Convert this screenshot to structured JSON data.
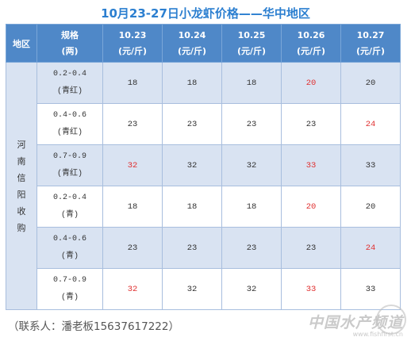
{
  "title": "10月23-27日小龙虾价格——华中地区",
  "header": {
    "region": "地区",
    "spec_top": "规格",
    "spec_bottom": "(两)",
    "dates": [
      {
        "date": "10.23",
        "unit": "(元/斤)"
      },
      {
        "date": "10.24",
        "unit": "(元/斤)"
      },
      {
        "date": "10.25",
        "unit": "(元/斤)"
      },
      {
        "date": "10.26",
        "unit": "(元/斤)"
      },
      {
        "date": "10.27",
        "unit": "(元/斤)"
      }
    ]
  },
  "region_chars": [
    "河",
    "南",
    "信",
    "阳",
    "收",
    "购"
  ],
  "rows": [
    {
      "size": "0.2-0.4",
      "grade": "(青红)",
      "prices": [
        "18",
        "18",
        "18",
        "20",
        "20"
      ],
      "red": [
        false,
        false,
        false,
        true,
        false
      ]
    },
    {
      "size": "0.4-0.6",
      "grade": "(青红)",
      "prices": [
        "23",
        "23",
        "23",
        "23",
        "24"
      ],
      "red": [
        false,
        false,
        false,
        false,
        true
      ]
    },
    {
      "size": "0.7-0.9",
      "grade": "(青红)",
      "prices": [
        "32",
        "32",
        "32",
        "33",
        "33"
      ],
      "red": [
        true,
        false,
        false,
        true,
        false
      ]
    },
    {
      "size": "0.2-0.4",
      "grade": "(青)",
      "prices": [
        "18",
        "18",
        "18",
        "20",
        "20"
      ],
      "red": [
        false,
        false,
        false,
        true,
        false
      ]
    },
    {
      "size": "0.4-0.6",
      "grade": "(青)",
      "prices": [
        "23",
        "23",
        "23",
        "23",
        "24"
      ],
      "red": [
        false,
        false,
        false,
        false,
        true
      ]
    },
    {
      "size": "0.7-0.9",
      "grade": "(青)",
      "prices": [
        "32",
        "32",
        "32",
        "33",
        "33"
      ],
      "red": [
        true,
        false,
        false,
        true,
        false
      ]
    }
  ],
  "contact": "（联系人：潘老板15637617222）",
  "watermark": {
    "main": "中国水产频道",
    "sub": "www.fishfirst.cn"
  },
  "colors": {
    "title": "#2c7fd0",
    "header_bg": "#4f88c8",
    "shade": "#d9e3f2",
    "highlight": "#e03030"
  }
}
